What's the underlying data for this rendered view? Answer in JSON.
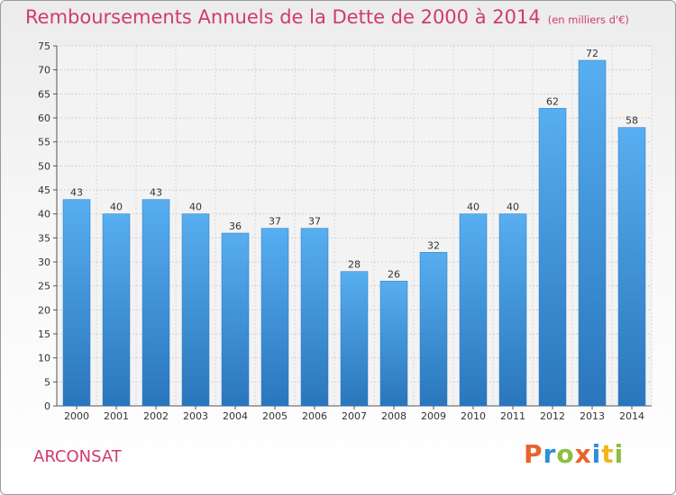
{
  "chart_data": {
    "type": "bar",
    "title": "Remboursements Annuels de la Dette de 2000 à 2014",
    "subtitle": "(en milliers d'€)",
    "categories": [
      "2000",
      "2001",
      "2002",
      "2003",
      "2004",
      "2005",
      "2006",
      "2007",
      "2008",
      "2009",
      "2010",
      "2011",
      "2012",
      "2013",
      "2014"
    ],
    "values": [
      43,
      40,
      43,
      40,
      36,
      37,
      37,
      28,
      26,
      32,
      40,
      40,
      62,
      72,
      58
    ],
    "xlabel": "",
    "ylabel": "",
    "ylim": [
      0,
      75
    ],
    "ytick_step": 5,
    "grid": true,
    "bar_color": "#3f97db",
    "bar_color_dark": "#2a76bd"
  },
  "footer": {
    "town": "ARCONSAT",
    "brand_letters": [
      "P",
      "r",
      "o",
      "x",
      "i",
      "t",
      "i"
    ],
    "brand_colors": [
      "#e8632c",
      "#2e8fd8",
      "#8bbf3c",
      "#e8632c",
      "#2e8fd8",
      "#f1b51c",
      "#8bbf3c"
    ]
  }
}
